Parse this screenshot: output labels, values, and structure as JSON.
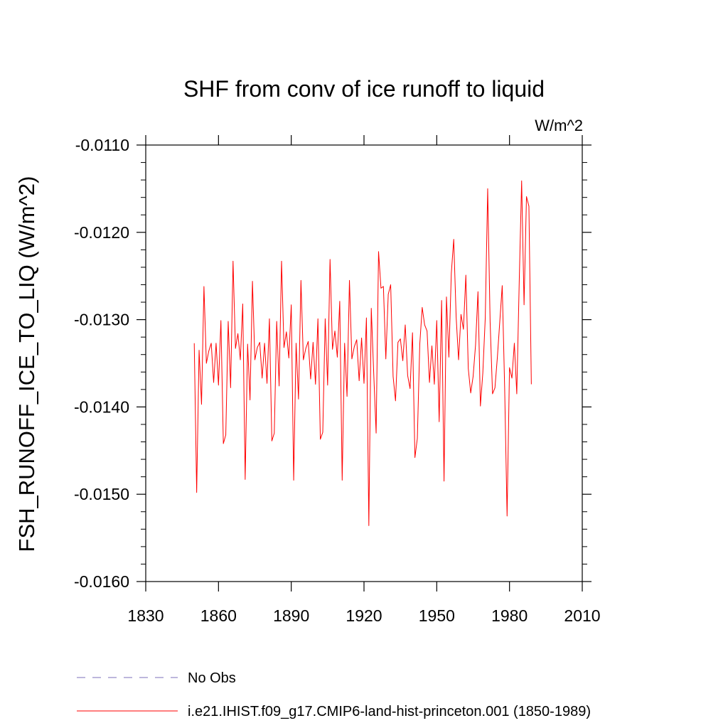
{
  "chart_data": {
    "type": "line",
    "title": "SHF from conv of ice runoff to liquid",
    "units_label": "W/m^2",
    "ylabel": "FSH_RUNOFF_ICE_TO_LIQ  (W/m^2)",
    "xlabel": "",
    "xlim": [
      1830,
      2010
    ],
    "ylim": [
      -0.016,
      -0.011
    ],
    "x_ticks": [
      1830,
      1860,
      1890,
      1920,
      1950,
      1980,
      2010
    ],
    "x_tick_labels": [
      "1830",
      "1860",
      "1890",
      "1920",
      "1950",
      "1980",
      "2010"
    ],
    "y_ticks": [
      -0.011,
      -0.012,
      -0.013,
      -0.014,
      -0.015,
      -0.016
    ],
    "y_tick_labels": [
      "-0.0110",
      "-0.0120",
      "-0.0130",
      "-0.0140",
      "-0.0150",
      "-0.0160"
    ],
    "grid": false,
    "legend_position": "bottom",
    "series": [
      {
        "name": "No Obs",
        "color": "#7b6fb8",
        "dash": "dashed",
        "x": [],
        "y": []
      },
      {
        "name": "i.e21.IHIST.f09_g17.CMIP6-land-hist-princeton.001 (1850-1989)",
        "color": "#ff0000",
        "dash": "solid",
        "x": [
          1850,
          1851,
          1852,
          1853,
          1854,
          1855,
          1856,
          1857,
          1858,
          1859,
          1860,
          1861,
          1862,
          1863,
          1864,
          1865,
          1866,
          1867,
          1868,
          1869,
          1870,
          1871,
          1872,
          1873,
          1874,
          1875,
          1876,
          1877,
          1878,
          1879,
          1880,
          1881,
          1882,
          1883,
          1884,
          1885,
          1886,
          1887,
          1888,
          1889,
          1890,
          1891,
          1892,
          1893,
          1894,
          1895,
          1896,
          1897,
          1898,
          1899,
          1900,
          1901,
          1902,
          1903,
          1904,
          1905,
          1906,
          1907,
          1908,
          1909,
          1910,
          1911,
          1912,
          1913,
          1914,
          1915,
          1916,
          1917,
          1918,
          1919,
          1920,
          1921,
          1922,
          1923,
          1924,
          1925,
          1926,
          1927,
          1928,
          1929,
          1930,
          1931,
          1932,
          1933,
          1934,
          1935,
          1936,
          1937,
          1938,
          1939,
          1940,
          1941,
          1942,
          1943,
          1944,
          1945,
          1946,
          1947,
          1948,
          1949,
          1950,
          1951,
          1952,
          1953,
          1954,
          1955,
          1956,
          1957,
          1958,
          1959,
          1960,
          1961,
          1962,
          1963,
          1964,
          1965,
          1966,
          1967,
          1968,
          1969,
          1970,
          1971,
          1972,
          1973,
          1974,
          1975,
          1976,
          1977,
          1978,
          1979,
          1980,
          1981,
          1982,
          1983,
          1984,
          1985,
          1986,
          1987,
          1988,
          1989
        ],
        "y": [
          -0.01327,
          -0.01498,
          -0.01335,
          -0.01397,
          -0.01262,
          -0.0135,
          -0.01336,
          -0.01327,
          -0.01372,
          -0.01327,
          -0.01375,
          -0.01301,
          -0.01442,
          -0.01432,
          -0.01302,
          -0.01378,
          -0.01233,
          -0.01333,
          -0.01316,
          -0.01346,
          -0.01282,
          -0.01483,
          -0.01328,
          -0.01392,
          -0.01256,
          -0.01346,
          -0.01332,
          -0.01326,
          -0.01367,
          -0.01327,
          -0.01373,
          -0.01299,
          -0.01439,
          -0.0143,
          -0.01302,
          -0.01376,
          -0.01233,
          -0.01332,
          -0.01314,
          -0.01344,
          -0.01283,
          -0.01484,
          -0.01327,
          -0.01391,
          -0.01255,
          -0.01346,
          -0.01333,
          -0.01325,
          -0.01368,
          -0.01326,
          -0.01374,
          -0.01299,
          -0.01437,
          -0.01429,
          -0.01299,
          -0.01375,
          -0.01231,
          -0.01334,
          -0.01313,
          -0.01343,
          -0.01279,
          -0.01484,
          -0.01327,
          -0.01388,
          -0.01255,
          -0.01345,
          -0.01331,
          -0.01323,
          -0.0137,
          -0.01321,
          -0.01373,
          -0.01298,
          -0.01536,
          -0.01287,
          -0.01361,
          -0.0143,
          -0.01222,
          -0.01264,
          -0.01262,
          -0.01345,
          -0.01271,
          -0.0126,
          -0.01365,
          -0.01393,
          -0.01326,
          -0.01322,
          -0.01347,
          -0.01306,
          -0.01364,
          -0.01379,
          -0.01315,
          -0.01458,
          -0.01436,
          -0.01328,
          -0.01286,
          -0.01306,
          -0.01313,
          -0.01372,
          -0.0133,
          -0.01374,
          -0.01301,
          -0.01417,
          -0.01278,
          -0.01485,
          -0.01274,
          -0.01343,
          -0.01247,
          -0.01208,
          -0.01297,
          -0.01346,
          -0.01294,
          -0.01311,
          -0.01249,
          -0.01356,
          -0.01384,
          -0.01365,
          -0.01329,
          -0.01268,
          -0.01399,
          -0.01361,
          -0.01298,
          -0.0115,
          -0.01302,
          -0.01385,
          -0.01378,
          -0.01343,
          -0.01302,
          -0.01261,
          -0.01378,
          -0.01525,
          -0.01355,
          -0.01367,
          -0.01327,
          -0.01385,
          -0.01258,
          -0.01141,
          -0.01283,
          -0.01159,
          -0.0117,
          -0.01374
        ]
      }
    ]
  }
}
